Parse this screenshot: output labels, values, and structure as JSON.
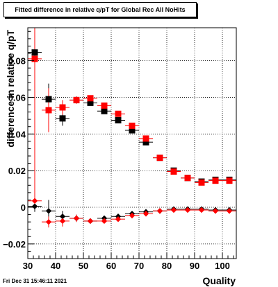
{
  "chart_data": {
    "type": "scatter",
    "title": "Fitted difference in relative q/pT for Global Rec All NoHits",
    "xlabel": "Quality",
    "ylabel": "difference in relative q/pT",
    "xlim": [
      30,
      105
    ],
    "ylim": [
      -0.028,
      0.098
    ],
    "xticks": [
      30,
      40,
      50,
      60,
      70,
      80,
      90,
      100
    ],
    "yticks": [
      -0.02,
      0,
      0.02,
      0.04,
      0.06,
      0.08
    ],
    "ytick_labels": [
      "−0.02",
      "0",
      "0.02",
      "0.04",
      "0.06",
      "0.08"
    ],
    "grid": true,
    "series": [
      {
        "color": "#000000",
        "marker": "square",
        "points": [
          {
            "x": 32.5,
            "y": 0.0845,
            "yerr": 0.005
          },
          {
            "x": 37.5,
            "y": 0.059,
            "yerr": 0.0085
          },
          {
            "x": 42.5,
            "y": 0.0485,
            "yerr": 0.004
          },
          {
            "x": 47.5,
            "y": 0.0585,
            "yerr": 0.002
          },
          {
            "x": 52.5,
            "y": 0.057,
            "yerr": 0.0015
          },
          {
            "x": 57.5,
            "y": 0.0525,
            "yerr": 0.0015
          },
          {
            "x": 62.5,
            "y": 0.0475,
            "yerr": 0.001
          },
          {
            "x": 67.5,
            "y": 0.042,
            "yerr": 0.001
          },
          {
            "x": 72.5,
            "y": 0.0355,
            "yerr": 0.001
          },
          {
            "x": 77.5,
            "y": 0.027,
            "yerr": 0.001
          },
          {
            "x": 82.5,
            "y": 0.02,
            "yerr": 0.001
          },
          {
            "x": 87.5,
            "y": 0.016,
            "yerr": 0.001
          },
          {
            "x": 92.5,
            "y": 0.014,
            "yerr": 0.001
          },
          {
            "x": 97.5,
            "y": 0.015,
            "yerr": 0.001
          },
          {
            "x": 102.5,
            "y": 0.015,
            "yerr": 0.001
          }
        ]
      },
      {
        "color": "#ff0000",
        "marker": "square",
        "points": [
          {
            "x": 32.5,
            "y": 0.081,
            "yerr": 0.082
          },
          {
            "x": 37.5,
            "y": 0.053,
            "yerr": 0.012
          },
          {
            "x": 42.5,
            "y": 0.0545,
            "yerr": 0.004
          },
          {
            "x": 47.5,
            "y": 0.0585,
            "yerr": 0.002
          },
          {
            "x": 52.5,
            "y": 0.0595,
            "yerr": 0.0015
          },
          {
            "x": 57.5,
            "y": 0.0555,
            "yerr": 0.0015
          },
          {
            "x": 62.5,
            "y": 0.051,
            "yerr": 0.001
          },
          {
            "x": 67.5,
            "y": 0.0445,
            "yerr": 0.001
          },
          {
            "x": 72.5,
            "y": 0.0375,
            "yerr": 0.001
          },
          {
            "x": 77.5,
            "y": 0.027,
            "yerr": 0.001
          },
          {
            "x": 82.5,
            "y": 0.0195,
            "yerr": 0.001
          },
          {
            "x": 87.5,
            "y": 0.016,
            "yerr": 0.001
          },
          {
            "x": 92.5,
            "y": 0.0135,
            "yerr": 0.001
          },
          {
            "x": 97.5,
            "y": 0.0145,
            "yerr": 0.001
          },
          {
            "x": 102.5,
            "y": 0.0145,
            "yerr": 0.001
          }
        ]
      },
      {
        "color": "#000000",
        "marker": "diamond",
        "points": [
          {
            "x": 32.5,
            "y": 0.0005,
            "yerr": 0.003
          },
          {
            "x": 37.5,
            "y": -0.002,
            "yerr": 0.006
          },
          {
            "x": 42.5,
            "y": -0.005,
            "yerr": 0.003
          },
          {
            "x": 47.5,
            "y": -0.006,
            "yerr": 0.002
          },
          {
            "x": 52.5,
            "y": -0.0075,
            "yerr": 0.001
          },
          {
            "x": 57.5,
            "y": -0.006,
            "yerr": 0.001
          },
          {
            "x": 62.5,
            "y": -0.005,
            "yerr": 0.001
          },
          {
            "x": 67.5,
            "y": -0.0035,
            "yerr": 0.001
          },
          {
            "x": 72.5,
            "y": -0.0025,
            "yerr": 0.001
          },
          {
            "x": 77.5,
            "y": -0.002,
            "yerr": 0.001
          },
          {
            "x": 82.5,
            "y": -0.001,
            "yerr": 0.001
          },
          {
            "x": 87.5,
            "y": -0.001,
            "yerr": 0.001
          },
          {
            "x": 92.5,
            "y": -0.001,
            "yerr": 0.001
          },
          {
            "x": 97.5,
            "y": -0.0015,
            "yerr": 0.001
          },
          {
            "x": 102.5,
            "y": -0.0015,
            "yerr": 0.001
          }
        ]
      },
      {
        "color": "#ff0000",
        "marker": "diamond",
        "points": [
          {
            "x": 32.5,
            "y": 0.0035,
            "yerr": 0.0045
          },
          {
            "x": 37.5,
            "y": -0.008,
            "yerr": 0.003
          },
          {
            "x": 42.5,
            "y": -0.0075,
            "yerr": 0.003
          },
          {
            "x": 47.5,
            "y": -0.006,
            "yerr": 0.002
          },
          {
            "x": 52.5,
            "y": -0.0075,
            "yerr": 0.001
          },
          {
            "x": 57.5,
            "y": -0.0075,
            "yerr": 0.001
          },
          {
            "x": 62.5,
            "y": -0.0065,
            "yerr": 0.001
          },
          {
            "x": 67.5,
            "y": -0.0045,
            "yerr": 0.001
          },
          {
            "x": 72.5,
            "y": -0.0035,
            "yerr": 0.001
          },
          {
            "x": 77.5,
            "y": -0.002,
            "yerr": 0.001
          },
          {
            "x": 82.5,
            "y": -0.0015,
            "yerr": 0.001
          },
          {
            "x": 87.5,
            "y": -0.0015,
            "yerr": 0.001
          },
          {
            "x": 92.5,
            "y": -0.0015,
            "yerr": 0.001
          },
          {
            "x": 97.5,
            "y": -0.002,
            "yerr": 0.001
          },
          {
            "x": 102.5,
            "y": -0.002,
            "yerr": 0.001
          }
        ]
      }
    ]
  },
  "footer": {
    "timestamp": "Fri Dec 31 15:46:11 2021"
  }
}
